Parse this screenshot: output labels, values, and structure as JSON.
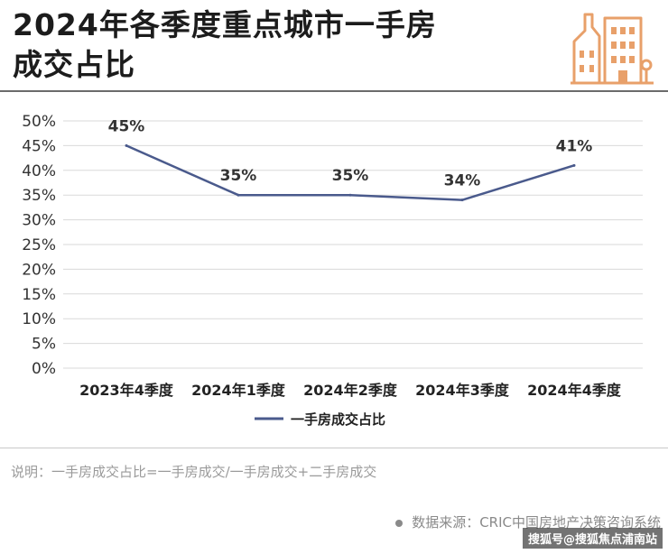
{
  "header": {
    "title_line1": "2024年各季度重点城市一手房",
    "title_line2": "成交占比",
    "icon": "building-icon"
  },
  "colors": {
    "line": "#4a5a8c",
    "icon": "#e8a06a",
    "grid": "#d9d9d9"
  },
  "chart_data": {
    "type": "line",
    "title": "2024年各季度重点城市一手房成交占比",
    "categories": [
      "2023年4季度",
      "2024年1季度",
      "2024年2季度",
      "2024年3季度",
      "2024年4季度"
    ],
    "series": [
      {
        "name": "一手房成交占比",
        "values": [
          45,
          35,
          35,
          34,
          41
        ],
        "labels": [
          "45%",
          "35%",
          "35%",
          "34%",
          "41%"
        ]
      }
    ],
    "y_ticks": [
      "0%",
      "5%",
      "10%",
      "15%",
      "20%",
      "25%",
      "30%",
      "35%",
      "40%",
      "45%",
      "50%"
    ],
    "ylim": [
      0,
      50
    ],
    "grid": true,
    "legend": "bottom-center",
    "xlabel": "",
    "ylabel": ""
  },
  "footer": {
    "note": "说明：一手房成交占比=一手房成交/一手房成交+二手房成交",
    "source": "数据来源：CRIC中国房地产决策咨询系统",
    "watermark": "搜狐号@搜狐焦点浦南站"
  }
}
